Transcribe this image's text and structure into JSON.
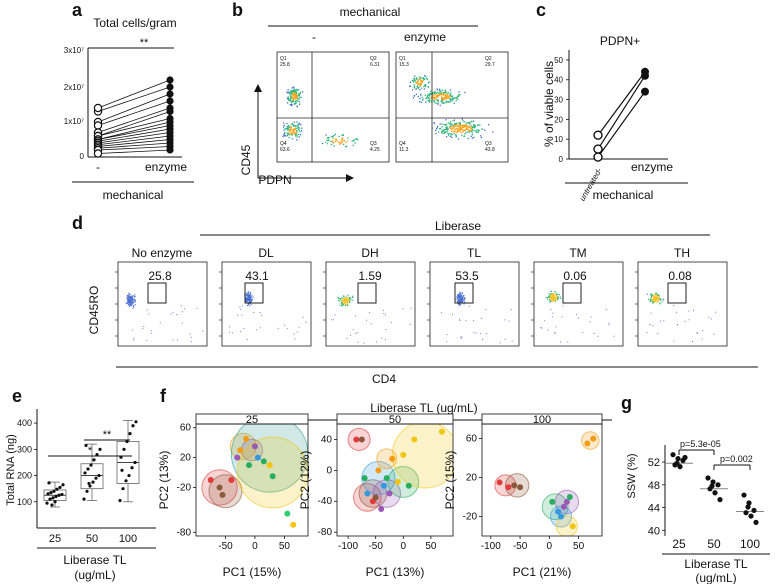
{
  "panels": {
    "a": {
      "label": "a",
      "title": "Total cells/gram",
      "yticks": [
        "3x10⁷",
        "2x10⁷",
        "1x10⁷",
        "0"
      ],
      "xticks": [
        "-",
        "enzyme"
      ],
      "group": "mechanical",
      "signif": "**"
    },
    "b": {
      "label": "b",
      "group": "mechanical",
      "cols": [
        "-",
        "enzyme"
      ],
      "ylabel": "CD45",
      "xlabel": "PDPN",
      "quads_left": [
        "Q1\n25.8",
        "Q2\n6.31",
        "Q3\n4.25",
        "Q4\n63.6"
      ],
      "quads_right": [
        "Q1\n15.3",
        "Q2\n29.7",
        "Q3\n43.8",
        "Q4\n11.3"
      ]
    },
    "c": {
      "label": "c",
      "title": "PDPN+",
      "ylabel": "% of viable cells",
      "yticks": [
        "50",
        "40",
        "30",
        "20",
        "10",
        "0"
      ],
      "xticks": [
        "untreated-",
        "enzyme"
      ],
      "group": "mechanical"
    },
    "d": {
      "label": "d",
      "group": "Liberase",
      "ylabel": "CD45RO",
      "xlabel": "CD4",
      "plots": [
        {
          "name": "No enzyme",
          "value": "25.8"
        },
        {
          "name": "DL",
          "value": "43.1"
        },
        {
          "name": "DH",
          "value": "1.59"
        },
        {
          "name": "TL",
          "value": "53.5"
        },
        {
          "name": "TM",
          "value": "0.06"
        },
        {
          "name": "TH",
          "value": "0.08"
        }
      ]
    },
    "e": {
      "label": "e",
      "ylabel": "Total RNA (ng)",
      "yticks": [
        "400",
        "300",
        "200",
        "100"
      ],
      "xticks": [
        "25",
        "50",
        "100"
      ],
      "xlabel_line1": "Liberase TL",
      "xlabel_line2": "(ug/mL)",
      "sig1": "*",
      "sig2": "**"
    },
    "f": {
      "label": "f",
      "group": "Liberase TL (ug/mL)",
      "subplots": [
        {
          "title": "25",
          "xlabel": "PC1 (15%)",
          "ylabel": "PC2 (13%)",
          "xticks": [
            "-50",
            "0",
            "50"
          ],
          "yticks": [
            "60",
            "20",
            "-20",
            "-80"
          ]
        },
        {
          "title": "50",
          "xlabel": "PC1 (13%)",
          "ylabel": "PC2 (12%)",
          "xticks": [
            "-100",
            "-50",
            "0",
            "50"
          ],
          "yticks": [
            "40",
            "0",
            "-40",
            "-80"
          ]
        },
        {
          "title": "100",
          "xlabel": "PC1 (21%)",
          "ylabel": "PC2 (15%)",
          "xticks": [
            "-100",
            "-50",
            "0",
            "50"
          ],
          "yticks": [
            "60",
            "20",
            "-20"
          ]
        }
      ]
    },
    "g": {
      "label": "g",
      "ylabel": "SSW (%)",
      "yticks": [
        "52",
        "48",
        "44",
        "40"
      ],
      "xticks": [
        "25",
        "50",
        "100"
      ],
      "xlabel_line1": "Liberase TL",
      "xlabel_line2": "(ug/mL)",
      "p1": "p=5.3e-05",
      "p2": "p=0.002"
    }
  },
  "chart_data": [
    {
      "panel": "a",
      "type": "scatter",
      "title": "Total cells/gram",
      "categories": [
        "-",
        "enzyme"
      ],
      "paired": [
        [
          13000000.0,
          20000000.0
        ],
        [
          14000000.0,
          22000000.0
        ],
        [
          10000000.0,
          18000000.0
        ],
        [
          9000000.0,
          16000000.0
        ],
        [
          7000000.0,
          14000000.0
        ],
        [
          6000000.0,
          13000000.0
        ],
        [
          6000000.0,
          11000000.0
        ],
        [
          5000000.0,
          9000000.0
        ],
        [
          5000000.0,
          10000000.0
        ],
        [
          4500000.0,
          8000000.0
        ],
        [
          4000000.0,
          7000000.0
        ],
        [
          3500000.0,
          6000000.0
        ],
        [
          3000000.0,
          5000000.0
        ],
        [
          2500000.0,
          4000000.0
        ],
        [
          2000000.0,
          3000000.0
        ],
        [
          1000000.0,
          2000000.0
        ]
      ],
      "ylim": [
        0,
        30000000.0
      ]
    },
    {
      "panel": "c",
      "type": "scatter",
      "title": "PDPN+",
      "categories": [
        "untreated-",
        "enzyme"
      ],
      "paired": [
        [
          12,
          44
        ],
        [
          5,
          42
        ],
        [
          1,
          34
        ]
      ],
      "ylim": [
        0,
        55
      ]
    },
    {
      "panel": "e",
      "type": "box",
      "categories": [
        "25",
        "50",
        "100"
      ],
      "ylabel": "Total RNA (ng)",
      "ylim": [
        0,
        450
      ],
      "series": [
        {
          "name": "25",
          "q1": 105,
          "median": 125,
          "q3": 145,
          "min": 80,
          "max": 175,
          "points": [
            95,
            110,
            115,
            120,
            125,
            128,
            130,
            135,
            140,
            148,
            155,
            165,
            172,
            88,
            100
          ]
        },
        {
          "name": "50",
          "q1": 150,
          "median": 200,
          "q3": 245,
          "min": 105,
          "max": 320,
          "points": [
            110,
            140,
            160,
            175,
            190,
            200,
            210,
            225,
            240,
            260,
            280,
            300,
            315,
            170
          ]
        },
        {
          "name": "100",
          "q1": 170,
          "median": 250,
          "q3": 330,
          "min": 100,
          "max": 410,
          "points": [
            105,
            150,
            180,
            200,
            230,
            250,
            270,
            300,
            330,
            360,
            390,
            405,
            220
          ]
        }
      ]
    },
    {
      "panel": "g",
      "type": "scatter",
      "categories": [
        "25",
        "50",
        "100"
      ],
      "ylabel": "SSW (%)",
      "ylim": [
        39,
        55
      ],
      "series": [
        {
          "name": "25",
          "median": 51.8,
          "values": [
            53.3,
            52.6,
            52.3,
            51.5,
            51.2,
            52.8,
            51.8
          ]
        },
        {
          "name": "50",
          "median": 47.3,
          "values": [
            49.2,
            48.5,
            48.0,
            47.3,
            46.6,
            45.4,
            47.8
          ]
        },
        {
          "name": "100",
          "median": 43.3,
          "values": [
            46.2,
            44.8,
            43.5,
            43.1,
            42.5,
            41.4,
            44.1
          ]
        }
      ]
    },
    {
      "panel": "f",
      "type": "scatter",
      "title": "Liberase TL (ug/mL)",
      "subplots": [
        {
          "name": "25",
          "points": [
            [
              -75,
              -10,
              "#e03c3c"
            ],
            [
              -60,
              -20,
              "#8b5a3c"
            ],
            [
              -55,
              -30,
              "#8b5a3c"
            ],
            [
              -40,
              -10,
              "#e03c3c"
            ],
            [
              -30,
              20,
              "#9b59b6"
            ],
            [
              -25,
              30,
              "#f39c12"
            ],
            [
              -15,
              45,
              "#f39c12"
            ],
            [
              0,
              35,
              "#9b59b6"
            ],
            [
              5,
              20,
              "#3498db"
            ],
            [
              15,
              15,
              "#27ae60"
            ],
            [
              25,
              10,
              "#f1c40f"
            ],
            [
              30,
              -5,
              "#27ae60"
            ],
            [
              55,
              -55,
              "#2ecc71"
            ],
            [
              65,
              -70,
              "#f1c40f"
            ],
            [
              -10,
              10,
              "#27ae60"
            ]
          ],
          "circles": [
            [
              -60,
              -20,
              30,
              "#e03c3c"
            ],
            [
              -50,
              -25,
              28,
              "#8b5a3c"
            ],
            [
              -20,
              35,
              22,
              "#f39c12"
            ],
            [
              -5,
              30,
              18,
              "#9b59b6"
            ],
            [
              25,
              25,
              65,
              "#2a9d8f"
            ],
            [
              30,
              0,
              60,
              "#f1c40f"
            ]
          ]
        },
        {
          "name": "50",
          "points": [
            [
              -85,
              40,
              "#e03c3c"
            ],
            [
              -75,
              40,
              "#8b5a3c"
            ],
            [
              -70,
              -10,
              "#27ae60"
            ],
            [
              -65,
              -30,
              "#3498db"
            ],
            [
              -55,
              -40,
              "#e03c3c"
            ],
            [
              -50,
              -35,
              "#8b5a3c"
            ],
            [
              -45,
              0,
              "#f39c12"
            ],
            [
              -40,
              -50,
              "#9b59b6"
            ],
            [
              -35,
              -20,
              "#3498db"
            ],
            [
              -30,
              -10,
              "#27ae60"
            ],
            [
              -25,
              -30,
              "#9b59b6"
            ],
            [
              -20,
              15,
              "#f39c12"
            ],
            [
              -10,
              -15,
              "#f1c40f"
            ],
            [
              0,
              20,
              "#f1c40f"
            ],
            [
              10,
              -20,
              "#27ae60"
            ],
            [
              20,
              40,
              "#f1c40f"
            ],
            [
              70,
              50,
              "#f1c40f"
            ]
          ],
          "circles": [
            [
              -80,
              40,
              20,
              "#e03c3c"
            ],
            [
              -65,
              -35,
              25,
              "#e03c3c"
            ],
            [
              -55,
              -30,
              25,
              "#8b5a3c"
            ],
            [
              -45,
              -10,
              30,
              "#3498db"
            ],
            [
              -30,
              -30,
              25,
              "#9b59b6"
            ],
            [
              -30,
              15,
              18,
              "#f39c12"
            ],
            [
              0,
              -15,
              28,
              "#27ae60"
            ],
            [
              40,
              20,
              60,
              "#f1c40f"
            ]
          ]
        },
        {
          "name": "100",
          "points": [
            [
              -85,
              15,
              "#e03c3c"
            ],
            [
              -70,
              10,
              "#e03c3c"
            ],
            [
              -60,
              12,
              "#8b5a3c"
            ],
            [
              -50,
              10,
              "#8b5a3c"
            ],
            [
              5,
              -5,
              "#27ae60"
            ],
            [
              15,
              -15,
              "#3498db"
            ],
            [
              20,
              -20,
              "#3498db"
            ],
            [
              25,
              -10,
              "#9b59b6"
            ],
            [
              30,
              -5,
              "#9b59b6"
            ],
            [
              35,
              0,
              "#27ae60"
            ],
            [
              40,
              -30,
              "#f1c40f"
            ],
            [
              65,
              55,
              "#f39c12"
            ],
            [
              75,
              60,
              "#f39c12"
            ]
          ],
          "circles": [
            [
              -75,
              12,
              18,
              "#e03c3c"
            ],
            [
              -55,
              12,
              20,
              "#8b5a3c"
            ],
            [
              10,
              -10,
              22,
              "#27ae60"
            ],
            [
              30,
              -5,
              20,
              "#9b59b6"
            ],
            [
              20,
              -20,
              18,
              "#3498db"
            ],
            [
              30,
              -30,
              18,
              "#f1c40f"
            ],
            [
              70,
              58,
              15,
              "#f39c12"
            ]
          ]
        }
      ]
    }
  ]
}
